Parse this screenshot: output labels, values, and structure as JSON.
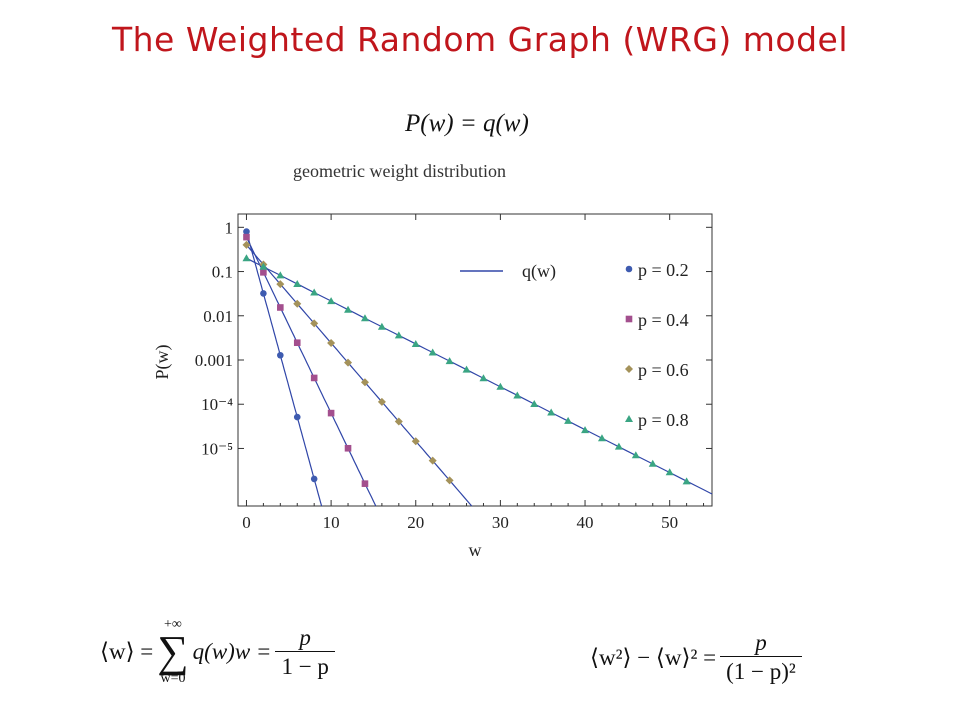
{
  "slide": {
    "title": "The Weighted Random Graph (WRG) model",
    "equation_top": "P(w) = q(w)",
    "caption": "geometric weight distribution"
  },
  "equations": {
    "mean": {
      "lhs": "⟨w⟩ =",
      "sum_top": "+∞",
      "sum_bottom": "w=0",
      "body": "q(w)w =",
      "num": "p",
      "den": "1 − p"
    },
    "variance": {
      "lhs": "⟨w²⟩ − ⟨w⟩² =",
      "num": "p",
      "den": "(1 − p)²"
    }
  },
  "chart_data": {
    "type": "scatter",
    "title": "",
    "xlabel": "w",
    "ylabel": "P(w)",
    "xlim": [
      -1,
      55
    ],
    "ylim": [
      5e-07,
      2
    ],
    "yscale": "log",
    "xticks": [
      "0",
      "10",
      "20",
      "30",
      "40",
      "50"
    ],
    "yticks": [
      "1",
      "0.1",
      "0.01",
      "0.001",
      "10⁻⁴",
      "10⁻⁵"
    ],
    "legend_position": "right",
    "line_legend": "q(w)",
    "colors": {
      "p02": "#3e5bb0",
      "p04": "#a34f8e",
      "p06": "#a4925a",
      "p08": "#3aa583",
      "line": "#3046a8"
    },
    "series": [
      {
        "name": "p = 0.2",
        "p": 0.2,
        "marker": "circle",
        "x": [
          0,
          2,
          4,
          6,
          8
        ],
        "y": [
          0.8,
          0.032,
          0.00128,
          5.12e-05,
          2.05e-06
        ]
      },
      {
        "name": "p = 0.4",
        "p": 0.4,
        "marker": "square",
        "x": [
          0,
          2,
          4,
          6,
          8,
          10,
          12,
          14
        ],
        "y": [
          0.6,
          0.096,
          0.0154,
          0.00246,
          0.000393,
          6.3e-05,
          1.01e-05,
          1.6e-06
        ]
      },
      {
        "name": "p = 0.6",
        "p": 0.6,
        "marker": "diamond",
        "x": [
          0,
          2,
          4,
          6,
          8,
          10,
          12,
          14,
          16,
          18,
          20,
          22,
          24
        ],
        "y": [
          0.4,
          0.144,
          0.0518,
          0.0187,
          0.00672,
          0.00242,
          0.00087,
          0.000313,
          0.000113,
          4.06e-05,
          1.46e-05,
          5.3e-06,
          1.9e-06
        ]
      },
      {
        "name": "p = 0.8",
        "p": 0.8,
        "marker": "triangle",
        "x": [
          0,
          2,
          4,
          6,
          8,
          10,
          12,
          14,
          16,
          18,
          20,
          22,
          24,
          26,
          28,
          30,
          32,
          34,
          36,
          38,
          40,
          42,
          44,
          46,
          48,
          50,
          52
        ],
        "y": [
          0.2,
          0.128,
          0.0819,
          0.0524,
          0.0336,
          0.0215,
          0.0137,
          0.0088,
          0.00563,
          0.0036,
          0.0023,
          0.00148,
          0.000944,
          0.000604,
          0.000387,
          0.000248,
          0.000158,
          0.000101,
          6.5e-05,
          4.2e-05,
          2.6e-05,
          1.7e-05,
          1.1e-05,
          7e-06,
          4.5e-06,
          2.9e-06,
          1.8e-06
        ]
      }
    ]
  }
}
